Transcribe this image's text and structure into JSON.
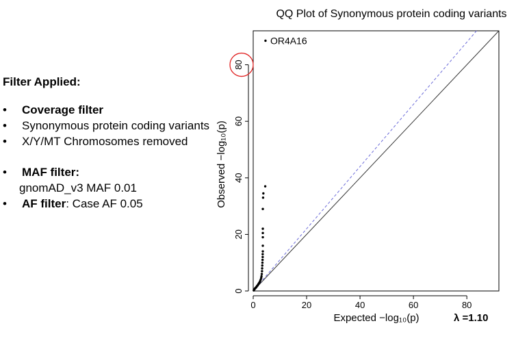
{
  "filters": {
    "heading": "Filter Applied:",
    "items": [
      {
        "label": "Coverage filter"
      },
      {
        "text": "Synonymous protein coding variants"
      },
      {
        "text": "X/Y/MT Chromosomes removed"
      },
      {
        "label": "MAF filter:",
        "detail": "gnomAD_v3 MAF 0.01"
      },
      {
        "label": "AF filter",
        "text": ": Case AF 0.05"
      }
    ]
  },
  "chart_data": {
    "type": "scatter",
    "title": "QQ Plot of Synonymous protein coding variants",
    "xlabel": "Expected  −log₁₀(p)",
    "ylabel": "Observed  −log₁₀(p)",
    "xlim": [
      0,
      92
    ],
    "ylim": [
      0,
      92
    ],
    "xticks": [
      0,
      20,
      40,
      60,
      80
    ],
    "yticks": [
      0,
      20,
      40,
      60,
      80
    ],
    "grid": false,
    "lambda_label": "λ =1.10",
    "reference_lines": [
      {
        "name": "y = x",
        "slope": 1.0,
        "color": "#333333",
        "style": "solid"
      },
      {
        "name": "y = 1.10x",
        "slope": 1.1,
        "color": "#6b6bd8",
        "style": "dashed"
      }
    ],
    "points": [
      [
        0.2,
        0.2
      ],
      [
        0.4,
        0.5
      ],
      [
        0.6,
        0.8
      ],
      [
        0.8,
        1.0
      ],
      [
        1.0,
        1.2
      ],
      [
        1.2,
        1.4
      ],
      [
        1.4,
        1.7
      ],
      [
        1.6,
        1.9
      ],
      [
        1.8,
        2.2
      ],
      [
        2.0,
        2.5
      ],
      [
        2.2,
        2.8
      ],
      [
        2.4,
        3.1
      ],
      [
        2.6,
        3.5
      ],
      [
        2.8,
        4.0
      ],
      [
        3.0,
        4.6
      ],
      [
        3.1,
        5.2
      ],
      [
        3.2,
        6.0
      ],
      [
        3.3,
        7.0
      ],
      [
        3.35,
        8.0
      ],
      [
        3.4,
        9.0
      ],
      [
        3.45,
        10.0
      ],
      [
        3.5,
        11.0
      ],
      [
        3.55,
        12.0
      ],
      [
        3.55,
        13.0
      ],
      [
        3.6,
        14.0
      ],
      [
        3.6,
        16.0
      ],
      [
        3.6,
        19.0
      ],
      [
        3.6,
        20.5
      ],
      [
        3.6,
        22.0
      ],
      [
        3.6,
        29.0
      ],
      [
        3.7,
        33.0
      ],
      [
        3.8,
        34.5
      ],
      [
        4.5,
        37.0
      ],
      [
        4.6,
        88.5
      ]
    ],
    "annotation": {
      "label": "OR4A16",
      "x": 4.6,
      "y": 88.5
    },
    "highlight": {
      "label": "80",
      "note": "circled y tick label",
      "color": "#e02020"
    }
  }
}
